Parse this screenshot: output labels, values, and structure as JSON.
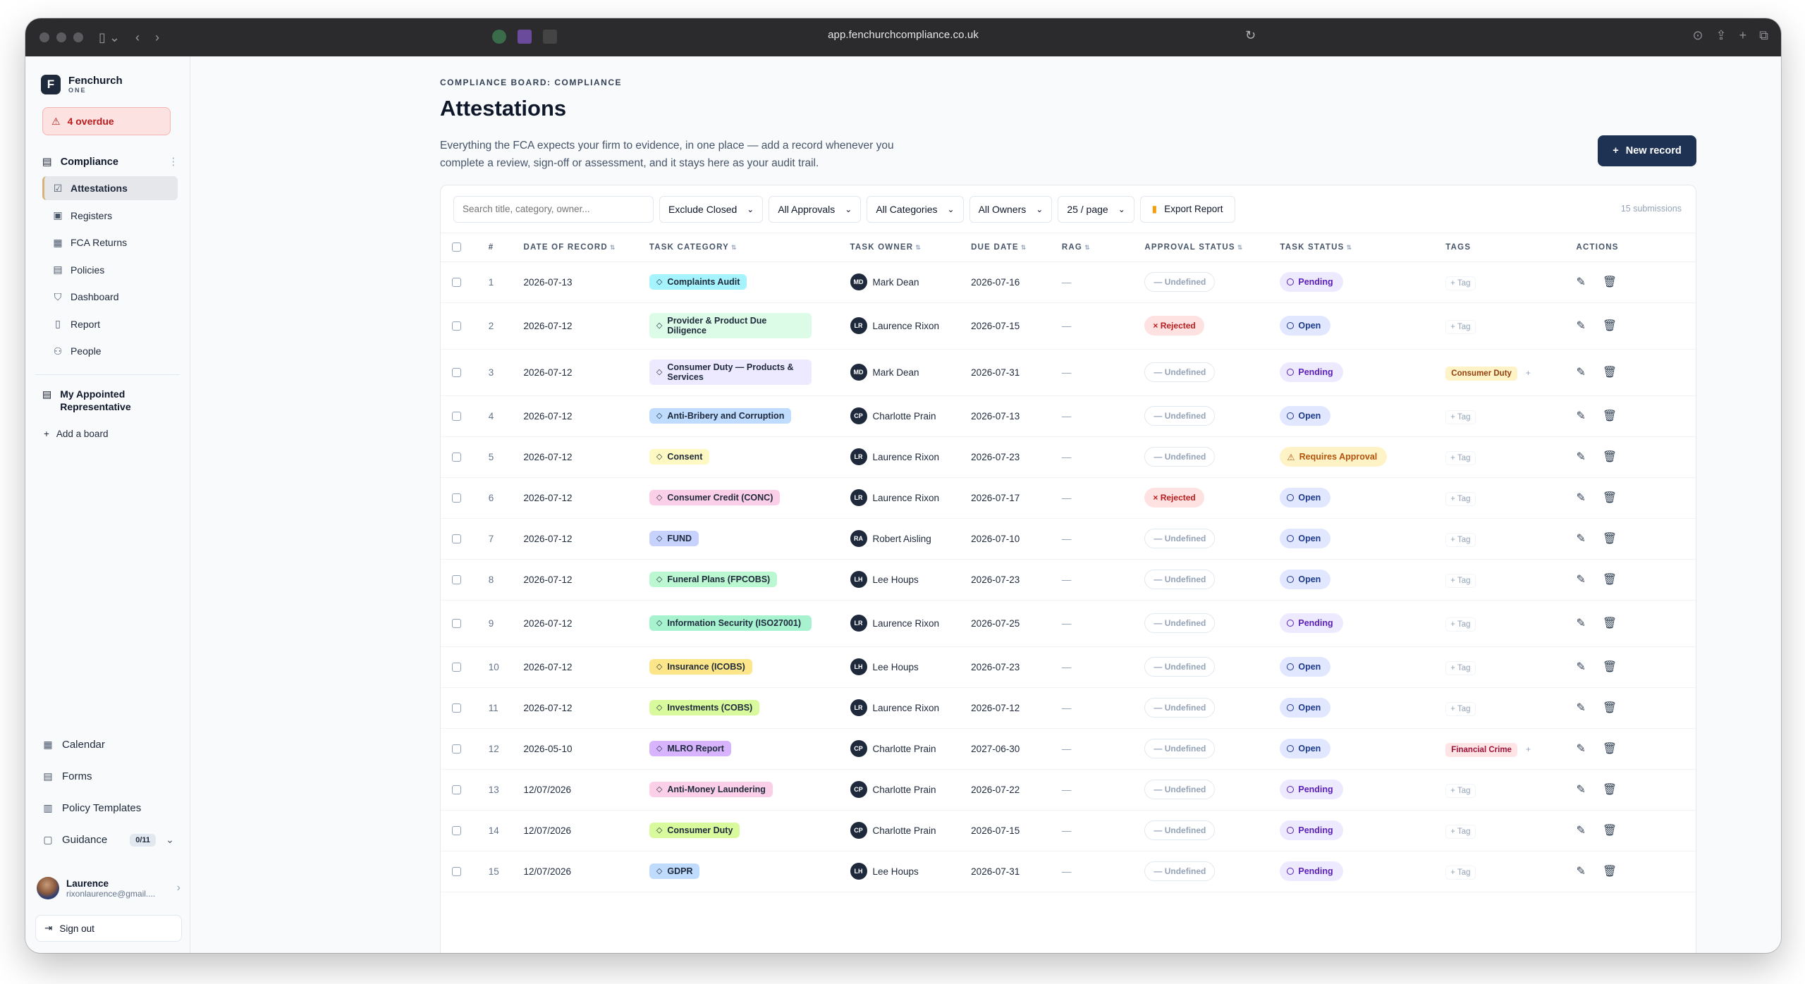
{
  "browser": {
    "url": "app.fenchurchcompliance.co.uk"
  },
  "sidebar": {
    "brand_name": "Fenchurch",
    "brand_sub": "ONE",
    "overdue": "4 overdue",
    "section": "Compliance",
    "items": [
      {
        "label": "Attestations",
        "icon": "checkbox-icon",
        "active": true
      },
      {
        "label": "Registers",
        "icon": "book-icon"
      },
      {
        "label": "FCA Returns",
        "icon": "calendar-icon"
      },
      {
        "label": "Policies",
        "icon": "document-icon"
      },
      {
        "label": "Dashboard",
        "icon": "shield-icon"
      },
      {
        "label": "Report",
        "icon": "file-icon"
      },
      {
        "label": "People",
        "icon": "people-icon"
      }
    ],
    "board2": "My Appointed Representative",
    "add_board": "Add a board",
    "bottom": [
      {
        "label": "Calendar",
        "icon": "calendar-icon"
      },
      {
        "label": "Forms",
        "icon": "form-icon"
      },
      {
        "label": "Policy Templates",
        "icon": "template-icon"
      },
      {
        "label": "Guidance",
        "icon": "book-open-icon",
        "badge": "0/11"
      }
    ],
    "user_name": "Laurence",
    "user_email": "rixonlaurence@gmail....",
    "sign_out": "Sign out"
  },
  "main": {
    "breadcrumb": "COMPLIANCE BOARD: COMPLIANCE",
    "title": "Attestations",
    "description": "Everything the FCA expects your firm to evidence, in one place — add a record whenever you complete a review, sign-off or assessment, and it stays here as your audit trail.",
    "new_record": "New record",
    "search_placeholder": "Search title, category, owner...",
    "filters": [
      "Exclude Closed",
      "All Approvals",
      "All Categories",
      "All Owners",
      "25 / page"
    ],
    "export": "Export Report",
    "submissions": "15 submissions",
    "columns": [
      "#",
      "DATE OF RECORD",
      "TASK CATEGORY",
      "TASK OWNER",
      "DUE DATE",
      "RAG",
      "APPROVAL STATUS",
      "TASK STATUS",
      "TAGS",
      "ACTIONS"
    ],
    "rows": [
      {
        "n": "1",
        "date": "2026-07-13",
        "cat": "Complaints Audit",
        "catColor": "#a5f3fc",
        "ini": "MD",
        "owner": "Mark Dean",
        "due": "2026-07-16",
        "rag": "—",
        "approval": "— Undefined",
        "appr": "undef",
        "status": "Pending",
        "st": "pending",
        "tag": "+ Tag"
      },
      {
        "n": "2",
        "date": "2026-07-12",
        "cat": "Provider & Product Due Diligence",
        "catColor": "#dcfce7",
        "wide": true,
        "ini": "LR",
        "owner": "Laurence Rixon",
        "due": "2026-07-15",
        "rag": "—",
        "approval": "× Rejected",
        "appr": "rej",
        "status": "Open",
        "st": "open",
        "tag": "+ Tag"
      },
      {
        "n": "3",
        "date": "2026-07-12",
        "cat": "Consumer Duty — Products & Services",
        "catColor": "#ede9fe",
        "wide": true,
        "ini": "MD",
        "owner": "Mark Dean",
        "due": "2026-07-31",
        "rag": "—",
        "approval": "— Undefined",
        "appr": "undef",
        "status": "Pending",
        "st": "pending",
        "tag": "Consumer Duty",
        "tagColor": "#fef3c7",
        "tagText": "#92400e",
        "tagPlus": "+"
      },
      {
        "n": "4",
        "date": "2026-07-12",
        "cat": "Anti-Bribery and Corruption",
        "catColor": "#bfdbfe",
        "ini": "CP",
        "owner": "Charlotte Prain",
        "due": "2026-07-13",
        "rag": "—",
        "approval": "— Undefined",
        "appr": "undef",
        "status": "Open",
        "st": "open",
        "tag": "+ Tag"
      },
      {
        "n": "5",
        "date": "2026-07-12",
        "cat": "Consent",
        "catColor": "#fef9c3",
        "ini": "LR",
        "owner": "Laurence Rixon",
        "due": "2026-07-23",
        "rag": "—",
        "approval": "— Undefined",
        "appr": "undef",
        "status": "Requires Approval",
        "st": "req",
        "tag": "+ Tag"
      },
      {
        "n": "6",
        "date": "2026-07-12",
        "cat": "Consumer Credit (CONC)",
        "catColor": "#fbcfe8",
        "ini": "LR",
        "owner": "Laurence Rixon",
        "due": "2026-07-17",
        "rag": "—",
        "approval": "× Rejected",
        "appr": "rej",
        "status": "Open",
        "st": "open",
        "tag": "+ Tag"
      },
      {
        "n": "7",
        "date": "2026-07-12",
        "cat": "FUND",
        "catColor": "#c7d2fe",
        "ini": "RA",
        "owner": "Robert Aisling",
        "due": "2026-07-10",
        "rag": "—",
        "approval": "— Undefined",
        "appr": "undef",
        "status": "Open",
        "st": "open",
        "tag": "+ Tag"
      },
      {
        "n": "8",
        "date": "2026-07-12",
        "cat": "Funeral Plans (FPCOBS)",
        "catColor": "#bbf7d0",
        "ini": "LH",
        "owner": "Lee Houps",
        "due": "2026-07-23",
        "rag": "—",
        "approval": "— Undefined",
        "appr": "undef",
        "status": "Open",
        "st": "open",
        "tag": "+ Tag"
      },
      {
        "n": "9",
        "date": "2026-07-12",
        "cat": "Information Security (ISO27001)",
        "catColor": "#a7f3d0",
        "wide": true,
        "ini": "LR",
        "owner": "Laurence Rixon",
        "due": "2026-07-25",
        "rag": "—",
        "approval": "— Undefined",
        "appr": "undef",
        "status": "Pending",
        "st": "pending",
        "tag": "+ Tag"
      },
      {
        "n": "10",
        "date": "2026-07-12",
        "cat": "Insurance (ICOBS)",
        "catColor": "#fde68a",
        "ini": "LH",
        "owner": "Lee Houps",
        "due": "2026-07-23",
        "rag": "—",
        "approval": "— Undefined",
        "appr": "undef",
        "status": "Open",
        "st": "open",
        "tag": "+ Tag"
      },
      {
        "n": "11",
        "date": "2026-07-12",
        "cat": "Investments (COBS)",
        "catColor": "#d9f99d",
        "ini": "LR",
        "owner": "Laurence Rixon",
        "due": "2026-07-12",
        "rag": "—",
        "approval": "— Undefined",
        "appr": "undef",
        "status": "Open",
        "st": "open",
        "tag": "+ Tag"
      },
      {
        "n": "12",
        "date": "2026-05-10",
        "cat": "MLRO Report",
        "catColor": "#d8b4fe",
        "ini": "CP",
        "owner": "Charlotte Prain",
        "due": "2027-06-30",
        "rag": "—",
        "approval": "— Undefined",
        "appr": "undef",
        "status": "Open",
        "st": "open",
        "tag": "Financial Crime",
        "tagColor": "#ffe4e6",
        "tagText": "#9f1239",
        "tagPlus": "+"
      },
      {
        "n": "13",
        "date": "12/07/2026",
        "cat": "Anti-Money Laundering",
        "catColor": "#fbcfe8",
        "ini": "CP",
        "owner": "Charlotte Prain",
        "due": "2026-07-22",
        "rag": "—",
        "approval": "— Undefined",
        "appr": "undef",
        "status": "Pending",
        "st": "pending",
        "tag": "+ Tag"
      },
      {
        "n": "14",
        "date": "12/07/2026",
        "cat": "Consumer Duty",
        "catColor": "#d9f99d",
        "ini": "CP",
        "owner": "Charlotte Prain",
        "due": "2026-07-15",
        "rag": "—",
        "approval": "— Undefined",
        "appr": "undef",
        "status": "Pending",
        "st": "pending",
        "tag": "+ Tag"
      },
      {
        "n": "15",
        "date": "12/07/2026",
        "cat": "GDPR",
        "catColor": "#bfdbfe",
        "ini": "LH",
        "owner": "Lee Houps",
        "due": "2026-07-31",
        "rag": "—",
        "approval": "— Undefined",
        "appr": "undef",
        "status": "Pending",
        "st": "pending",
        "tag": "+ Tag"
      }
    ]
  }
}
